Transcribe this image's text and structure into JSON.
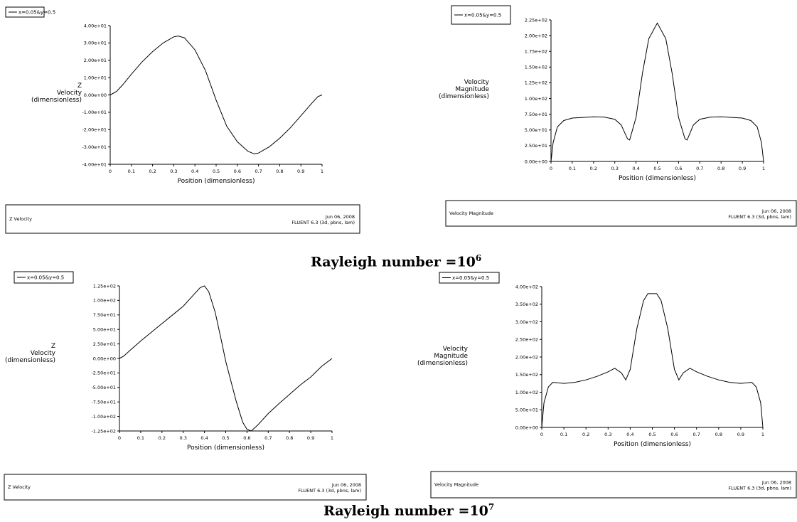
{
  "captions": {
    "top": {
      "text": "Rayleigh number =10",
      "exp": "6"
    },
    "bottom": {
      "text": "Rayleigh number =10",
      "exp": "7"
    }
  },
  "chart_data": [
    {
      "type": "line",
      "legend": "x=0.05&y=0.5",
      "ylabel": [
        "Z",
        "Velocity",
        "(dimensionless)"
      ],
      "xlabel": "Position (dimensionless)",
      "x_ticks": [
        "0",
        "0.1",
        "0.2",
        "0.3",
        "0.4",
        "0.5",
        "0.6",
        "0.7",
        "0.8",
        "0.9",
        "1"
      ],
      "y_ticks": [
        "4.00e+01",
        "3.00e+01",
        "2.00e+01",
        "1.00e+01",
        "0.00e+00",
        "-1.00e+01",
        "-2.00e+01",
        "-3.00e+01",
        "-4.00e+01"
      ],
      "xlim": [
        0,
        1
      ],
      "ylim": [
        -40,
        40
      ],
      "footer": {
        "left": "Z Velocity",
        "date": "Jun 06, 2008",
        "solver": "FLUENT 6.3 (3d, pbns, lam)"
      },
      "series": [
        {
          "x": [
            0,
            0.03,
            0.06,
            0.1,
            0.15,
            0.2,
            0.25,
            0.3,
            0.32,
            0.35,
            0.4,
            0.45,
            0.5,
            0.55,
            0.6,
            0.65,
            0.68,
            0.7,
            0.75,
            0.8,
            0.85,
            0.9,
            0.95,
            0.98,
            1.0
          ],
          "y": [
            0,
            2,
            6,
            12,
            19,
            25,
            30,
            33.5,
            34,
            33,
            26,
            14,
            -3,
            -18,
            -27,
            -32.5,
            -34,
            -33.5,
            -30,
            -25,
            -19,
            -12,
            -5,
            -1,
            0
          ]
        }
      ]
    },
    {
      "type": "line",
      "legend": "x=0.05&y=0.5",
      "ylabel": [
        "Velocity",
        "Magnitude",
        "(dimensionless)"
      ],
      "xlabel": "Position (dimensionless)",
      "x_ticks": [
        "0",
        "0.1",
        "0.2",
        "0.3",
        "0.4",
        "0.5",
        "0.6",
        "0.7",
        "0.8",
        "0.9",
        "1"
      ],
      "y_ticks": [
        "2.25e+02",
        "2.00e+02",
        "1.75e+02",
        "1.50e+02",
        "1.25e+02",
        "1.00e+02",
        "7.50e+01",
        "5.00e+01",
        "2.50e+01",
        "0.00e+00"
      ],
      "xlim": [
        0,
        1
      ],
      "ylim": [
        0,
        225
      ],
      "footer": {
        "left": "Velocity Magnitude",
        "date": "Jun 06, 2008",
        "solver": "FLUENT 6.3 (3d, pbns, lam)"
      },
      "series": [
        {
          "x": [
            0,
            0.01,
            0.03,
            0.06,
            0.1,
            0.15,
            0.2,
            0.25,
            0.3,
            0.33,
            0.36,
            0.37,
            0.4,
            0.43,
            0.46,
            0.5,
            0.54,
            0.57,
            0.6,
            0.63,
            0.64,
            0.67,
            0.7,
            0.75,
            0.8,
            0.85,
            0.9,
            0.94,
            0.97,
            0.99,
            1.0
          ],
          "y": [
            0,
            30,
            55,
            65,
            69,
            70,
            71,
            70.5,
            67,
            58,
            36,
            34,
            70,
            140,
            195,
            220,
            195,
            140,
            70,
            36,
            34,
            58,
            67,
            70.5,
            71,
            70,
            69,
            65,
            55,
            30,
            0
          ]
        }
      ]
    },
    {
      "type": "line",
      "legend": "x=0.05&y=0.5",
      "ylabel": [
        "Z",
        "Velocity",
        "(dimensionless)"
      ],
      "xlabel": "Position (dimensionless)",
      "x_ticks": [
        "0",
        "0.1",
        "0.2",
        "0.3",
        "0.4",
        "0.5",
        "0.6",
        "0.7",
        "0.8",
        "0.9",
        "1"
      ],
      "y_ticks": [
        "1.25e+02",
        "1.00e+02",
        "7.50e+01",
        "5.00e+01",
        "2.50e+01",
        "0.00e+00",
        "-2.50e+01",
        "-5.00e+01",
        "-7.50e+01",
        "-1.00e+02",
        "-1.25e+02"
      ],
      "xlim": [
        0,
        1
      ],
      "ylim": [
        -125,
        125
      ],
      "footer": {
        "left": "Z Velocity",
        "date": "Jun 06, 2008",
        "solver": "FLUENT 6.3 (3d, pbns, lam)"
      },
      "series": [
        {
          "x": [
            0,
            0.02,
            0.05,
            0.1,
            0.15,
            0.2,
            0.25,
            0.3,
            0.35,
            0.38,
            0.4,
            0.42,
            0.45,
            0.48,
            0.5,
            0.55,
            0.58,
            0.6,
            0.62,
            0.65,
            0.7,
            0.75,
            0.8,
            0.85,
            0.9,
            0.95,
            1.0
          ],
          "y": [
            0,
            4,
            14,
            30,
            45,
            60,
            75,
            90,
            110,
            122,
            125,
            115,
            80,
            30,
            -5,
            -75,
            -110,
            -122,
            -125,
            -115,
            -95,
            -78,
            -62,
            -46,
            -32,
            -14,
            0
          ]
        }
      ]
    },
    {
      "type": "line",
      "legend": "x=0.05&y=0.5",
      "ylabel": [
        "Velocity",
        "Magnitude",
        "(dimensionless)"
      ],
      "xlabel": "Position (dimensionless)",
      "x_ticks": [
        "0",
        "0.1",
        "0.2",
        "0.3",
        "0.4",
        "0.5",
        "0.6",
        "0.7",
        "0.8",
        "0.9",
        "1"
      ],
      "y_ticks": [
        "4.00e+02",
        "3.50e+02",
        "3.00e+02",
        "2.50e+02",
        "2.00e+02",
        "1.50e+02",
        "1.00e+02",
        "5.00e+01",
        "0.00e+00"
      ],
      "xlim": [
        0,
        1
      ],
      "ylim": [
        0,
        400
      ],
      "footer": {
        "left": "Velocity Magnitude",
        "date": "Jun 06, 2008",
        "solver": "FLUENT 6.3 (3d, pbns, lam)"
      },
      "series": [
        {
          "x": [
            0,
            0.01,
            0.03,
            0.05,
            0.1,
            0.15,
            0.2,
            0.25,
            0.3,
            0.33,
            0.36,
            0.38,
            0.4,
            0.43,
            0.46,
            0.48,
            0.5,
            0.52,
            0.54,
            0.57,
            0.6,
            0.62,
            0.64,
            0.67,
            0.7,
            0.75,
            0.8,
            0.85,
            0.9,
            0.95,
            0.97,
            0.99,
            1.0
          ],
          "y": [
            0,
            70,
            115,
            128,
            125,
            128,
            135,
            145,
            158,
            168,
            155,
            135,
            165,
            280,
            360,
            380,
            380,
            380,
            360,
            280,
            165,
            135,
            155,
            168,
            158,
            145,
            135,
            128,
            125,
            128,
            115,
            70,
            0
          ]
        }
      ]
    }
  ]
}
